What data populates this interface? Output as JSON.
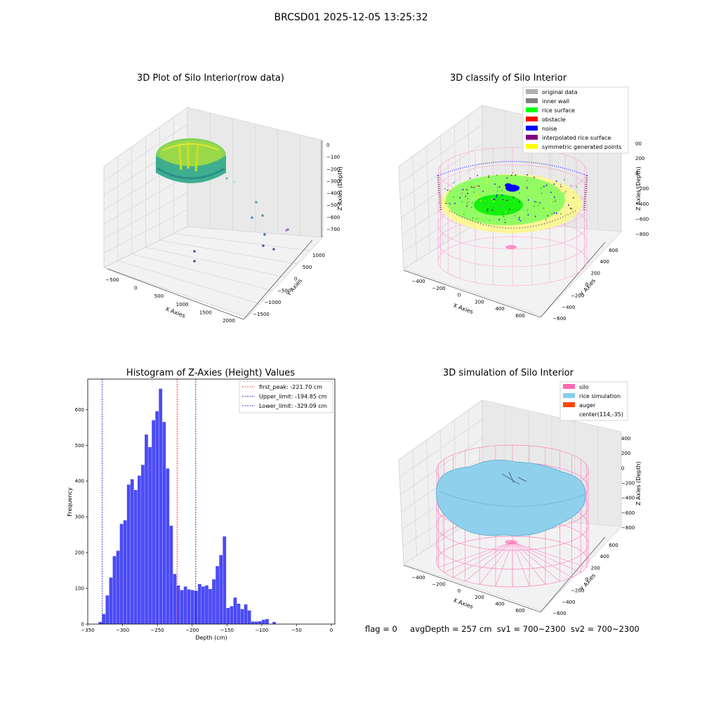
{
  "suptitle": "BRCSD01 2025-12-05 13:25:32",
  "footer": {
    "flag": "flag = 0",
    "avg": "avgDepth = 257 cm",
    "sv1": "sv1 = 700~2300",
    "sv2": "sv2 = 700~2300"
  },
  "colors": {
    "bar": "#4b4bf5",
    "peak": "#ff0000",
    "limit": "#0000cc",
    "silo": "#ff69b4",
    "rice": "#87ceeb",
    "auger": "#ff4500"
  },
  "chart_data": [
    {
      "type": "scatter3d",
      "title": "3D Plot of Silo Interior(row data)",
      "xlabel": "X Axies",
      "ylabel": "Y Axies",
      "zlabel": "Z Axies (Depth)",
      "x_ticks": [
        "−500",
        "0",
        "500",
        "1000",
        "1500",
        "2000"
      ],
      "y_ticks": [
        "−1500",
        "−1000",
        "−500",
        "0",
        "500",
        "1000"
      ],
      "z_ticks": [
        "0",
        "−100",
        "−200",
        "−300",
        "−400",
        "−500",
        "−600",
        "−700"
      ]
    },
    {
      "type": "scatter3d",
      "title": "3D classify of Silo Interior",
      "xlabel": "X Axies",
      "ylabel": "Y Axies",
      "zlabel": "Z Axies (Depth)",
      "x_ticks": [
        "−400",
        "−200",
        "0",
        "200",
        "400",
        "600"
      ],
      "y_ticks": [
        "−600",
        "−400",
        "−200",
        "0",
        "200",
        "400",
        "600"
      ],
      "z_ticks": [
        "200",
        "0",
        "−200",
        "−400",
        "−600",
        "−800"
      ],
      "z_ticks_extra": [
        "00"
      ],
      "legend": [
        {
          "label": "original data",
          "color": "#b0b0b0"
        },
        {
          "label": "inner wall",
          "color": "#808080"
        },
        {
          "label": "rice surface",
          "color": "#00ff00"
        },
        {
          "label": "obstacle",
          "color": "#ff0000"
        },
        {
          "label": "noise",
          "color": "#0000ff"
        },
        {
          "label": "interpolated rice surface",
          "color": "#800080"
        },
        {
          "label": "symmetric generated points",
          "color": "#ffff00"
        }
      ],
      "legend_position": "top-right"
    },
    {
      "type": "bar",
      "title": "Histogram of Z-Axies (Height) Values",
      "xlabel": "Depth (cm)",
      "ylabel": "Frequency",
      "xlim": [
        -350,
        5
      ],
      "ylim": [
        0,
        685
      ],
      "x_ticks": [
        -350,
        -300,
        -250,
        -200,
        -150,
        -100,
        -50,
        0
      ],
      "x_tick_labels": [
        "−350",
        "−300",
        "−250",
        "−200",
        "−150",
        "−100",
        "−50",
        "0"
      ],
      "y_ticks": [
        0,
        100,
        200,
        300,
        400,
        500,
        600
      ],
      "bin_start": -334.5,
      "bin_width": 5.1,
      "values": [
        6,
        28,
        80,
        130,
        190,
        205,
        280,
        290,
        390,
        405,
        375,
        415,
        445,
        530,
        495,
        570,
        595,
        658,
        565,
        435,
        275,
        140,
        108,
        95,
        105,
        97,
        95,
        93,
        112,
        105,
        108,
        98,
        125,
        162,
        193,
        245,
        45,
        50,
        74,
        57,
        42,
        55,
        38,
        7,
        7,
        8,
        12,
        14,
        0,
        6
      ],
      "lines": [
        {
          "label": "first_peak: -221.70 cm",
          "x": -221.7,
          "color": "#ff0000"
        },
        {
          "label": "Upper_limit: -194.85 cm",
          "x": -194.85,
          "color": "#0000cc"
        },
        {
          "label": "Lower_limit: -329.09 cm",
          "x": -329.09,
          "color": "#0000cc"
        }
      ],
      "legend_position": "top-right"
    },
    {
      "type": "surface3d",
      "title": "3D simulation of Silo Interior",
      "xlabel": "X Axies",
      "ylabel": "Y Axies",
      "zlabel": "Z Axies (Depth)",
      "x_ticks": [
        "−400",
        "−200",
        "0",
        "200",
        "400",
        "600"
      ],
      "y_ticks": [
        "−600",
        "−400",
        "−200",
        "0",
        "200",
        "400",
        "600"
      ],
      "z_ticks": [
        "400",
        "200",
        "0",
        "−200",
        "−400",
        "−600",
        "−800"
      ],
      "legend": [
        {
          "label": "silo",
          "color": "#ff69b4"
        },
        {
          "label": "rice simulation",
          "color": "#87ceeb"
        },
        {
          "label": "auger",
          "color": "#ff4500"
        },
        {
          "label": "center(114,-35)",
          "color": ""
        }
      ],
      "legend_position": "top-right"
    }
  ]
}
